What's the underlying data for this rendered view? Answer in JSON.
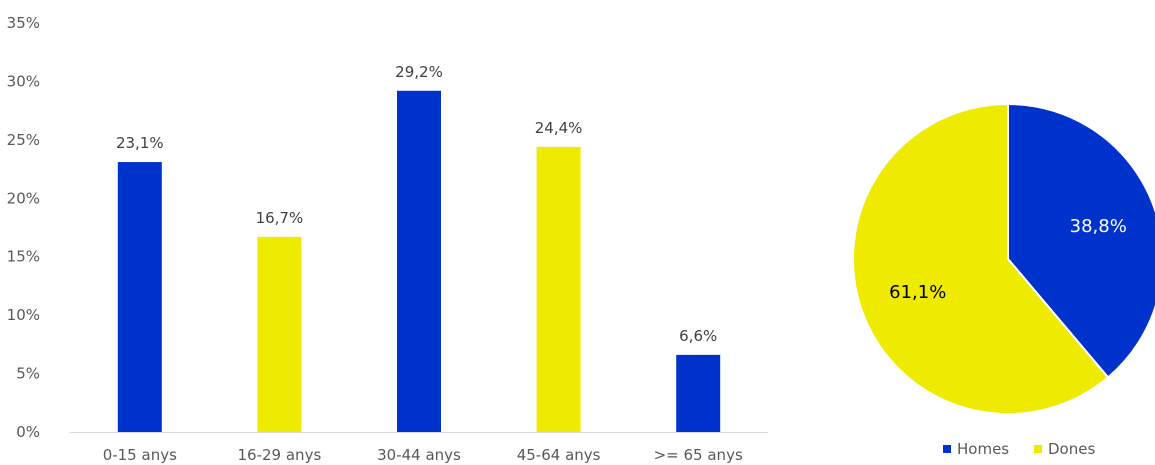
{
  "chart_data": [
    {
      "type": "bar",
      "categories": [
        "0-15 anys",
        "16-29 anys",
        "30-44 anys",
        "45-64 anys",
        ">= 65 anys"
      ],
      "values": [
        23.1,
        16.7,
        29.2,
        24.4,
        6.6
      ],
      "value_labels": [
        "23,1%",
        "16,7%",
        "29,2%",
        "24,4%",
        "6,6%"
      ],
      "bar_colors": [
        "#0033cc",
        "#eeea00",
        "#0033cc",
        "#eeea00",
        "#0033cc"
      ],
      "ylim": [
        0,
        35
      ],
      "y_ticks": [
        0,
        5,
        10,
        15,
        20,
        25,
        30,
        35
      ],
      "y_tick_labels": [
        "0%",
        "5%",
        "10%",
        "15%",
        "20%",
        "25%",
        "30%",
        "35%"
      ],
      "grid": false,
      "title": "",
      "xlabel": "",
      "ylabel": ""
    },
    {
      "type": "pie",
      "start_angle": "12 o'clock, clockwise",
      "slices": [
        {
          "name": "Homes",
          "value": 38.8,
          "label": "38,8%",
          "color": "#0033cc",
          "label_color": "#ffffff"
        },
        {
          "name": "Dones",
          "value": 61.1,
          "label": "61,1%",
          "color": "#eeea00",
          "label_color": "#000000"
        }
      ],
      "legend": {
        "position": "bottom",
        "items": [
          {
            "name": "Homes",
            "color": "#0033cc"
          },
          {
            "name": "Dones",
            "color": "#eeea00"
          }
        ]
      }
    }
  ]
}
